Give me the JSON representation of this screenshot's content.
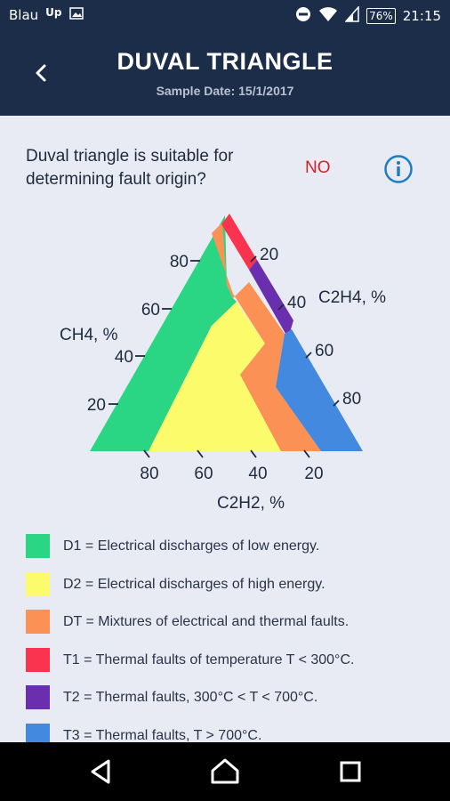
{
  "status_bar": {
    "carrier": "Blau",
    "carrier_badge": "Up",
    "battery": "76%",
    "time": "21:15"
  },
  "header": {
    "title": "DUVAL TRIANGLE",
    "subtitle": "Sample Date: 15/1/2017"
  },
  "question": {
    "text": "Duval triangle is suitable for determining fault origin?",
    "answer": "NO"
  },
  "diagram": {
    "axes": {
      "ch4": {
        "label": "CH4, %",
        "ticks": [
          "80",
          "60",
          "40",
          "20"
        ]
      },
      "c2h4": {
        "label": "C2H4, %",
        "ticks": [
          "20",
          "40",
          "60",
          "80"
        ]
      },
      "c2h2": {
        "label": "C2H2, %",
        "ticks": [
          "80",
          "60",
          "40",
          "20"
        ]
      }
    },
    "zone_colors": {
      "D1": "#2ad683",
      "D2": "#fbfb6b",
      "DT": "#fb9154",
      "T1": "#fa334f",
      "T2": "#6a2faf",
      "T3": "#4289df"
    }
  },
  "legend": [
    {
      "code": "D1",
      "color": "#2ad683",
      "text": "D1 = Electrical discharges of low energy."
    },
    {
      "code": "D2",
      "color": "#fbfb6b",
      "text": "D2 = Electrical discharges of high energy."
    },
    {
      "code": "DT",
      "color": "#fb9154",
      "text": "DT = Mixtures of electrical and thermal faults."
    },
    {
      "code": "T1",
      "color": "#fa334f",
      "text": "T1 = Thermal faults of temperature T < 300°C."
    },
    {
      "code": "T2",
      "color": "#6a2faf",
      "text": "T2 = Thermal faults, 300°C < T < 700°C."
    },
    {
      "code": "T3",
      "color": "#4289df",
      "text": "T3 = Thermal faults, T > 700°C."
    }
  ],
  "icons": {
    "back": "arrow-left-icon",
    "info": "info-icon",
    "nav_back": "triangle-back-icon",
    "nav_home": "circle-home-icon",
    "nav_recent": "square-recent-icon"
  },
  "colors": {
    "header_bg": "#1c2d4a",
    "page_bg": "#e8ebf3",
    "answer_red": "#d71f2a",
    "info_blue": "#1e7dc2"
  }
}
